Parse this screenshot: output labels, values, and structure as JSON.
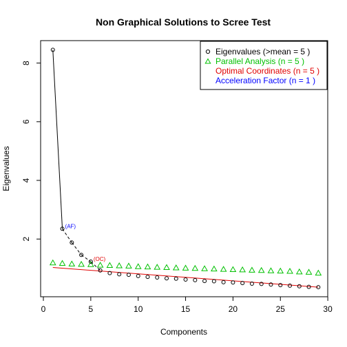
{
  "chart_data": {
    "type": "scatter",
    "title": "Non Graphical Solutions to Scree Test",
    "xlabel": "Components",
    "ylabel": "Eigenvalues",
    "xlim": [
      0,
      30
    ],
    "ylim": [
      0,
      8.8
    ],
    "xticks": [
      0,
      5,
      10,
      15,
      20,
      25,
      30
    ],
    "yticks": [
      2,
      4,
      6,
      8
    ],
    "x": [
      1,
      2,
      3,
      4,
      5,
      6,
      7,
      8,
      9,
      10,
      11,
      12,
      13,
      14,
      15,
      16,
      17,
      18,
      19,
      20,
      21,
      22,
      23,
      24,
      25,
      26,
      27,
      28,
      29
    ],
    "series": [
      {
        "name": "Eigenvalues (>mean  =  5 )",
        "marker": "circle",
        "color": "#000000",
        "values": [
          8.45,
          2.35,
          1.88,
          1.46,
          1.23,
          0.93,
          0.84,
          0.8,
          0.78,
          0.74,
          0.71,
          0.69,
          0.66,
          0.65,
          0.62,
          0.6,
          0.57,
          0.56,
          0.53,
          0.52,
          0.5,
          0.48,
          0.47,
          0.45,
          0.43,
          0.41,
          0.39,
          0.37,
          0.36
        ]
      },
      {
        "name": "Parallel Analysis (n =  5 )",
        "marker": "triangle",
        "color": "#00c000",
        "values": [
          1.19,
          1.17,
          1.15,
          1.14,
          1.13,
          1.11,
          1.1,
          1.09,
          1.08,
          1.06,
          1.05,
          1.04,
          1.03,
          1.02,
          1.01,
          1.0,
          0.99,
          0.98,
          0.97,
          0.96,
          0.95,
          0.94,
          0.93,
          0.92,
          0.91,
          0.9,
          0.88,
          0.87,
          0.84
        ]
      }
    ],
    "optimal_coordinates_line": {
      "name": "Optimal Coordinates (n =  5 )",
      "color": "#e00000",
      "x": [
        1,
        29
      ],
      "y": [
        1.03,
        0.36
      ]
    },
    "acceleration_factor": {
      "name": "Acceleration Factor (n =  1 )",
      "color": "#0000ff"
    },
    "annotations": [
      {
        "text": "(AF)",
        "x": 2,
        "y": 2.35,
        "color": "#0000ff"
      },
      {
        "text": "(OC)",
        "x": 5,
        "y": 1.23,
        "color": "#e00000"
      }
    ],
    "legend_position": "top-right",
    "grid": false
  }
}
